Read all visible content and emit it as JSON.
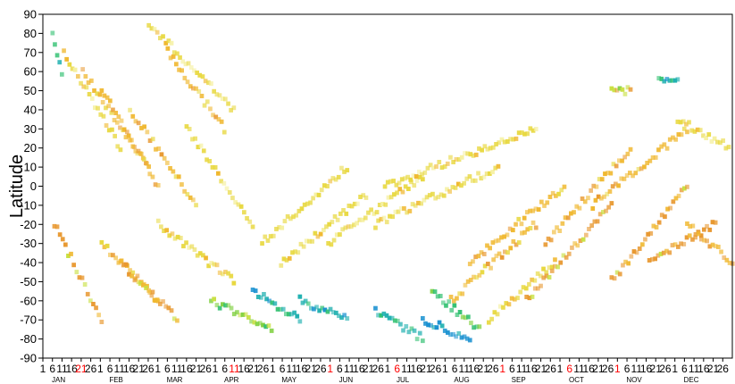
{
  "chart_data": {
    "type": "heatmap",
    "title": "",
    "xlabel": "",
    "ylabel": "Latitude",
    "ylim": [
      -90,
      90
    ],
    "y_ticks": [
      90,
      80,
      70,
      60,
      50,
      40,
      30,
      20,
      10,
      0,
      -10,
      -20,
      -30,
      -40,
      -50,
      -60,
      -70,
      -80,
      -90
    ],
    "x_day_labels": [
      "1",
      "6",
      "11",
      "16",
      "21",
      "26",
      "1",
      "6",
      "11",
      "16",
      "21",
      "26",
      "1",
      "6",
      "11",
      "16",
      "21",
      "26",
      "1",
      "6",
      "11",
      "16",
      "21",
      "26",
      "1",
      "6",
      "11",
      "16",
      "21",
      "26",
      "1",
      "6",
      "11",
      "16",
      "21",
      "26",
      "1",
      "6",
      "11",
      "16",
      "21",
      "26",
      "1",
      "6",
      "11",
      "16",
      "21",
      "26",
      "1",
      "6",
      "11",
      "16",
      "21",
      "26",
      "1",
      "6",
      "11",
      "16",
      "21",
      "26",
      "1",
      "6",
      "11",
      "16",
      "21",
      "26",
      "1",
      "6",
      "11",
      "16",
      "21",
      "26"
    ],
    "x_day_label_colors_red": [
      4,
      20,
      30,
      37,
      48,
      55,
      60,
      74,
      79,
      84
    ],
    "months": [
      "JAN",
      "FEB",
      "MAR",
      "APR",
      "MAY",
      "JUN",
      "JUL",
      "AUG",
      "SEP",
      "OCT",
      "NOV",
      "DEC"
    ],
    "highlight_color": "#ff0000",
    "colorscale": [
      "#ffffff",
      "#f5f0a0",
      "#e8d840",
      "#f0b830",
      "#e89830",
      "#c8e040",
      "#80d040",
      "#30c070",
      "#20b0b0",
      "#1890d0"
    ],
    "tracks": [
      {
        "lat0": 80,
        "lat1": 60,
        "day0": 4,
        "day1": 9,
        "level": 7
      },
      {
        "lat0": 70,
        "lat1": 20,
        "day0": 10,
        "day1": 40,
        "level": 2
      },
      {
        "lat0": 60,
        "lat1": 10,
        "day0": 20,
        "day1": 55,
        "level": 3
      },
      {
        "lat0": 50,
        "lat1": 0,
        "day0": 30,
        "day1": 60,
        "level": 3
      },
      {
        "lat0": 40,
        "lat1": -10,
        "day0": 45,
        "day1": 80,
        "level": 3
      },
      {
        "lat0": 85,
        "lat1": 40,
        "day0": 55,
        "day1": 100,
        "level": 2
      },
      {
        "lat0": 70,
        "lat1": 30,
        "day0": 65,
        "day1": 95,
        "level": 3
      },
      {
        "lat0": 30,
        "lat1": -20,
        "day0": 75,
        "day1": 110,
        "level": 2
      },
      {
        "lat0": -20,
        "lat1": -70,
        "day0": 5,
        "day1": 30,
        "level": 4
      },
      {
        "lat0": -30,
        "lat1": -60,
        "day0": 30,
        "day1": 60,
        "level": 3
      },
      {
        "lat0": -40,
        "lat1": -70,
        "day0": 40,
        "day1": 70,
        "level": 4
      },
      {
        "lat0": -20,
        "lat1": -50,
        "day0": 60,
        "day1": 100,
        "level": 2
      },
      {
        "lat0": -60,
        "lat1": -75,
        "day0": 88,
        "day1": 120,
        "level": 6
      },
      {
        "lat0": -55,
        "lat1": -70,
        "day0": 110,
        "day1": 135,
        "level": 8
      },
      {
        "lat0": -60,
        "lat1": -70,
        "day0": 135,
        "day1": 160,
        "level": 8
      },
      {
        "lat0": -65,
        "lat1": -80,
        "day0": 175,
        "day1": 200,
        "level": 8
      },
      {
        "lat0": -70,
        "lat1": -80,
        "day0": 200,
        "day1": 225,
        "level": 9
      },
      {
        "lat0": -55,
        "lat1": -75,
        "day0": 205,
        "day1": 230,
        "level": 7
      },
      {
        "lat0": -30,
        "lat1": 10,
        "day0": 115,
        "day1": 160,
        "level": 2
      },
      {
        "lat0": -40,
        "lat1": -5,
        "day0": 125,
        "day1": 170,
        "level": 2
      },
      {
        "lat0": -30,
        "lat1": 5,
        "day0": 150,
        "day1": 200,
        "level": 2
      },
      {
        "lat0": -20,
        "lat1": 10,
        "day0": 175,
        "day1": 240,
        "level": 2
      },
      {
        "lat0": 0,
        "lat1": 30,
        "day0": 180,
        "day1": 260,
        "level": 2
      },
      {
        "lat0": -60,
        "lat1": -20,
        "day0": 215,
        "day1": 260,
        "level": 3
      },
      {
        "lat0": -70,
        "lat1": -40,
        "day0": 235,
        "day1": 270,
        "level": 2
      },
      {
        "lat0": -40,
        "lat1": 0,
        "day0": 225,
        "day1": 275,
        "level": 3
      },
      {
        "lat0": -60,
        "lat1": -10,
        "day0": 255,
        "day1": 300,
        "level": 4
      },
      {
        "lat0": -30,
        "lat1": 20,
        "day0": 265,
        "day1": 310,
        "level": 3
      },
      {
        "lat0": -10,
        "lat1": 30,
        "day0": 290,
        "day1": 340,
        "level": 3
      },
      {
        "lat0": -50,
        "lat1": 0,
        "day0": 300,
        "day1": 340,
        "level": 4
      },
      {
        "lat0": -40,
        "lat1": -20,
        "day0": 320,
        "day1": 355,
        "level": 4
      },
      {
        "lat0": 50,
        "lat1": 50,
        "day0": 300,
        "day1": 310,
        "level": 5
      },
      {
        "lat0": 55,
        "lat1": 55,
        "day0": 325,
        "day1": 335,
        "level": 8
      },
      {
        "lat0": 35,
        "lat1": 20,
        "day0": 335,
        "day1": 362,
        "level": 2
      },
      {
        "lat0": -20,
        "lat1": -40,
        "day0": 340,
        "day1": 364,
        "level": 3
      }
    ]
  }
}
